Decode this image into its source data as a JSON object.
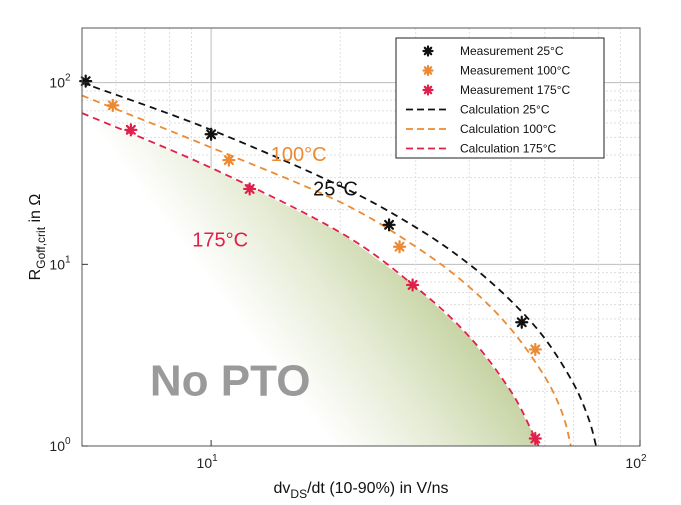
{
  "chart_data": {
    "type": "scatter",
    "xscale": "log",
    "yscale": "log",
    "xlim": [
      5,
      100
    ],
    "ylim": [
      1,
      200
    ],
    "xlabel": {
      "prefix": "dv",
      "sub": "DS",
      "suffix": "/dt (10-90%) in V/ns"
    },
    "ylabel": {
      "prefix": "R",
      "sub": "Goff,crit",
      "suffix": " in Ω"
    },
    "xticks": [
      {
        "value": 10,
        "label": "10",
        "exp": "1"
      },
      {
        "value": 100,
        "label": "10",
        "exp": "2"
      }
    ],
    "yticks": [
      {
        "value": 1,
        "label": "10",
        "exp": "0"
      },
      {
        "value": 10,
        "label": "10",
        "exp": "1"
      },
      {
        "value": 100,
        "label": "10",
        "exp": "2"
      }
    ],
    "grid": true,
    "legend_position": "top-right",
    "series": [
      {
        "name": "Measurement 25°C",
        "kind": "markers",
        "color": "#111111",
        "points": [
          [
            5.1,
            102
          ],
          [
            10,
            52
          ],
          [
            26,
            16.5
          ],
          [
            53,
            4.8
          ]
        ]
      },
      {
        "name": "Measurement 100°C",
        "kind": "markers",
        "color": "#ec8a32",
        "points": [
          [
            5.9,
            75
          ],
          [
            11,
            37.5
          ],
          [
            27.5,
            12.5
          ],
          [
            57,
            3.4
          ]
        ]
      },
      {
        "name": "Measurement 175°C",
        "kind": "markers",
        "color": "#e0204a",
        "points": [
          [
            6.5,
            55
          ],
          [
            12.3,
            26
          ],
          [
            29.5,
            7.7
          ],
          [
            57,
            1.1
          ]
        ]
      },
      {
        "name": "Calculation 25°C",
        "kind": "dashed",
        "color": "#111111",
        "points": [
          [
            5,
            100
          ],
          [
            10,
            55
          ],
          [
            20,
            27
          ],
          [
            30,
            16
          ],
          [
            40,
            10
          ],
          [
            50,
            6.3
          ],
          [
            60,
            3.9
          ],
          [
            70,
            2.2
          ],
          [
            76,
            1.4
          ],
          [
            79,
            1.0
          ]
        ]
      },
      {
        "name": "Calculation 100°C",
        "kind": "dashed",
        "color": "#ec8a32",
        "points": [
          [
            5,
            85
          ],
          [
            10,
            44
          ],
          [
            20,
            22
          ],
          [
            30,
            12.5
          ],
          [
            40,
            7.5
          ],
          [
            50,
            4.4
          ],
          [
            60,
            2.4
          ],
          [
            66,
            1.5
          ],
          [
            69,
            1.0
          ]
        ]
      },
      {
        "name": "Calculation 175°C",
        "kind": "dashed",
        "color": "#e0204a",
        "points": [
          [
            5,
            68
          ],
          [
            10,
            34
          ],
          [
            20,
            15
          ],
          [
            30,
            7.5
          ],
          [
            40,
            4.0
          ],
          [
            50,
            2.0
          ],
          [
            56,
            1.2
          ],
          [
            58,
            1.0
          ]
        ]
      }
    ],
    "annotations": [
      {
        "text": "100°C",
        "color": "#ec8a32",
        "x": 16,
        "y": 37
      },
      {
        "text": "25°C",
        "color": "#111111",
        "x": 19.5,
        "y": 24
      },
      {
        "text": "175°C",
        "color": "#e0204a",
        "x": 10.5,
        "y": 12.5
      }
    ],
    "region": {
      "label": "No PTO",
      "fill": "#9db46a",
      "x": 7.2,
      "y": 1.9
    }
  }
}
